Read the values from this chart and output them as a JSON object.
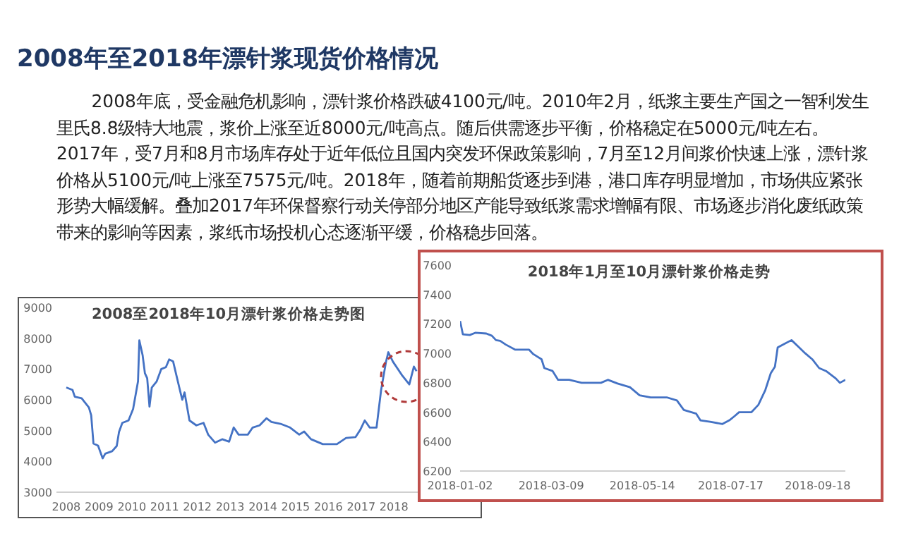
{
  "chart_data": [
    {
      "type": "line",
      "title": "2008至2018年10月漂针浆价格走势图",
      "color": "#4472c4",
      "annotations": [
        "2008年至2018年漂针浆现货价格情况",
        "2008年底，受金融危机影响，漂针浆价格跌破4100元/吨。2010年2月，纸浆主要生产国之一智利发生里氏8.8级特大地震，浆价上涨至近8000元/吨高点。随后供需逐步平衡，价格稳定在5000元/吨左右。2017年，受7月和8月市场库存处于近年低位且国内突发环保政策影响，7月至12月间浆价快速上涨，漂针浆价格从5100元/吨上涨至7575元/吨。2018年，随着前期船货逐步到港，港口库存明显增加，市场供应紧张形势大幅缓解。叠加2017年环保督察行动关停部分地区产能导致纸浆需求增幅有限、市场逐步消化废纸政策带来的影响等因素，浆纸市场投机心态逐渐平缓，价格稳步回落。"
      ],
      "x": [
        2008.0,
        2008.19,
        2008.26,
        2008.47,
        2008.69,
        2008.76,
        2008.83,
        2008.97,
        2009.11,
        2009.19,
        2009.4,
        2009.54,
        2009.61,
        2009.71,
        2009.9,
        2010.04,
        2010.19,
        2010.23,
        2010.33,
        2010.4,
        2010.47,
        2010.54,
        2010.61,
        2010.76,
        2010.9,
        2011.04,
        2011.14,
        2011.26,
        2011.4,
        2011.54,
        2011.61,
        2011.76,
        2011.97,
        2012.19,
        2012.33,
        2012.54,
        2012.76,
        2012.97,
        2013.11,
        2013.26,
        2013.54,
        2013.69,
        2013.9,
        2014.11,
        2014.26,
        2014.54,
        2014.83,
        2015.11,
        2015.26,
        2015.47,
        2015.83,
        2016.26,
        2016.54,
        2016.83,
        2016.97,
        2017.11,
        2017.26,
        2017.47,
        2017.61,
        2017.76,
        2017.83,
        2017.97,
        2018.26,
        2018.47,
        2018.61,
        2018.69
      ],
      "values": [
        6400,
        6320,
        6100,
        6050,
        5750,
        5500,
        4580,
        4510,
        4100,
        4250,
        4330,
        4500,
        4960,
        5250,
        5330,
        5700,
        6600,
        7930,
        7450,
        6860,
        6700,
        5780,
        6400,
        6600,
        7000,
        7060,
        7310,
        7250,
        6620,
        6000,
        6240,
        5330,
        5170,
        5250,
        4870,
        4610,
        4720,
        4640,
        5100,
        4870,
        4870,
        5100,
        5170,
        5400,
        5280,
        5220,
        5100,
        4870,
        4970,
        4720,
        4560,
        4560,
        4760,
        4790,
        5020,
        5330,
        5100,
        5100,
        6320,
        7240,
        7545,
        7240,
        6780,
        6500,
        7080,
        6930
      ],
      "xlim": [
        2007.7,
        2018.9
      ],
      "ylim": [
        3000,
        9000
      ],
      "xticks": [
        2008,
        2009,
        2010,
        2011,
        2012,
        2013,
        2014,
        2015,
        2016,
        2017,
        2018
      ],
      "yticks": [
        3000,
        4000,
        5000,
        6000,
        7000,
        8000,
        9000
      ]
    },
    {
      "type": "line",
      "title": "2018年1月至10月漂针浆价格走势",
      "color": "#4472c4",
      "x": [
        "2018-01-02",
        "2018-01-04",
        "2018-01-09",
        "2018-01-13",
        "2018-01-21",
        "2018-01-25",
        "2018-01-28",
        "2018-01-31",
        "2018-02-04",
        "2018-02-11",
        "2018-02-21",
        "2018-02-24",
        "2018-03-02",
        "2018-03-04",
        "2018-03-10",
        "2018-03-14",
        "2018-03-22",
        "2018-03-31",
        "2018-04-14",
        "2018-04-19",
        "2018-04-26",
        "2018-05-05",
        "2018-05-12",
        "2018-05-20",
        "2018-06-01",
        "2018-06-08",
        "2018-06-13",
        "2018-06-22",
        "2018-06-25",
        "2018-07-02",
        "2018-07-11",
        "2018-07-16",
        "2018-07-20",
        "2018-07-23",
        "2018-08-01",
        "2018-08-06",
        "2018-08-11",
        "2018-08-15",
        "2018-08-18",
        "2018-08-20",
        "2018-08-25",
        "2018-08-30",
        "2018-09-04",
        "2018-09-09",
        "2018-09-14",
        "2018-09-19",
        "2018-09-24",
        "2018-10-01",
        "2018-10-04",
        "2018-10-08"
      ],
      "values": [
        7220,
        7130,
        7125,
        7140,
        7135,
        7120,
        7090,
        7085,
        7060,
        7025,
        7025,
        6995,
        6960,
        6900,
        6880,
        6820,
        6820,
        6800,
        6800,
        6820,
        6795,
        6770,
        6715,
        6700,
        6700,
        6680,
        6615,
        6590,
        6545,
        6535,
        6520,
        6545,
        6575,
        6600,
        6600,
        6650,
        6750,
        6865,
        6910,
        7040,
        7065,
        7090,
        7045,
        7000,
        6960,
        6900,
        6880,
        6830,
        6800,
        6820
      ],
      "xlim": [
        "2018-01-02",
        "2018-10-08"
      ],
      "ylim": [
        6200,
        7600
      ],
      "xticks": [
        "2018-01-02",
        "2018-03-09",
        "2018-05-14",
        "2018-07-17",
        "2018-09-18"
      ],
      "yticks": [
        6200,
        6400,
        6600,
        6800,
        7000,
        7200,
        7400,
        7600
      ]
    }
  ]
}
